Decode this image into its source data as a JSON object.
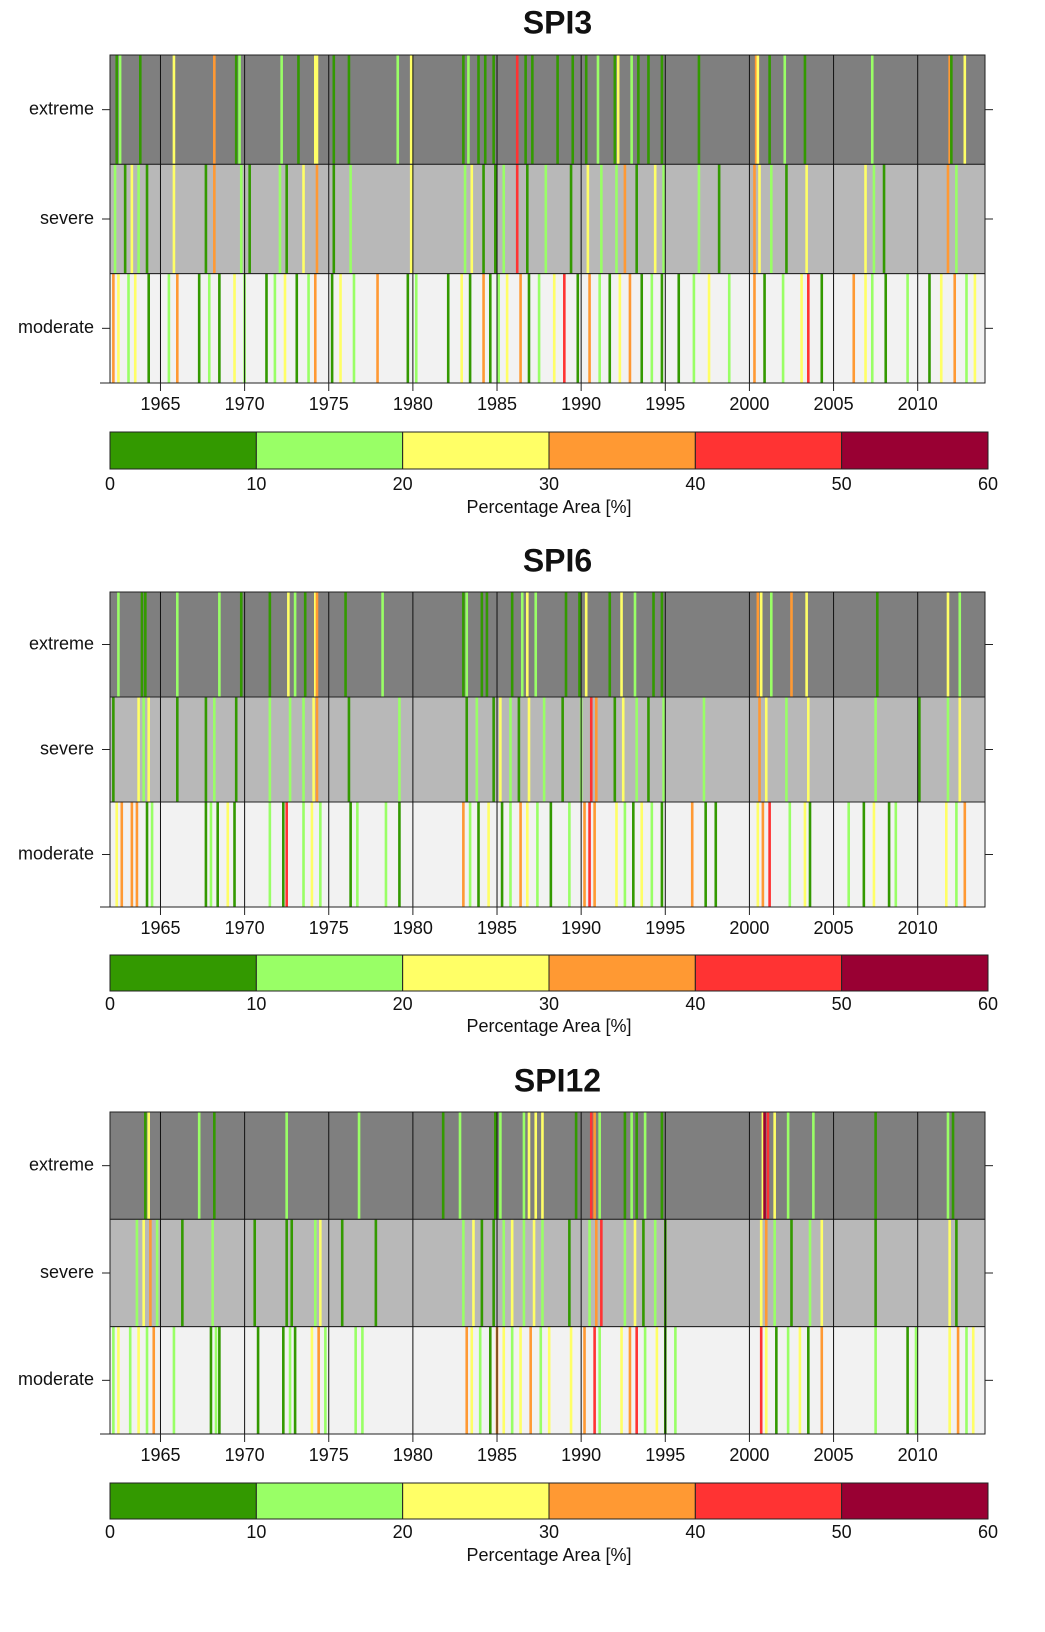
{
  "chart_data": [
    {
      "type": "heatmap",
      "title": "SPI3",
      "xlim": [
        1962,
        2014
      ],
      "xticks": [
        1965,
        1970,
        1975,
        1980,
        1985,
        1990,
        1995,
        2000,
        2005,
        2010
      ],
      "grid": true,
      "row_colors": [
        "#7f7f7f",
        "#b8b8b8",
        "#f2f2f2"
      ],
      "series": [
        {
          "name": "extreme",
          "x": [
            1962.4,
            1962.6,
            1963.8,
            1965.8,
            1968.2,
            1969.5,
            1969.7,
            1972.2,
            1973.2,
            1974.2,
            1974.3,
            1975.3,
            1976.2,
            1979.1,
            1979.9,
            1983.0,
            1983.3,
            1983.9,
            1984.3,
            1984.8,
            1986.2,
            1986.7,
            1987.1,
            1988.6,
            1989.5,
            1990.3,
            1991.0,
            1992.0,
            1992.2,
            1993.0,
            1993.4,
            1994.0,
            1994.8,
            1997.0,
            2000.4,
            2000.5,
            2001.2,
            2002.1,
            2003.3,
            2007.3,
            2011.9,
            2012.0,
            2012.8
          ],
          "values": [
            5,
            15,
            5,
            25,
            35,
            5,
            15,
            15,
            5,
            25,
            25,
            5,
            5,
            15,
            25,
            5,
            15,
            5,
            5,
            5,
            45,
            5,
            5,
            5,
            5,
            5,
            15,
            5,
            25,
            15,
            5,
            5,
            5,
            5,
            35,
            25,
            5,
            15,
            5,
            15,
            35,
            5,
            25
          ]
        },
        {
          "name": "severe",
          "x": [
            1962.3,
            1962.9,
            1963.3,
            1963.7,
            1964.2,
            1965.8,
            1967.7,
            1968.2,
            1969.8,
            1970.3,
            1972.1,
            1972.5,
            1973.5,
            1974.3,
            1975.3,
            1976.3,
            1979.9,
            1983.1,
            1983.5,
            1984.2,
            1984.9,
            1985.4,
            1986.2,
            1986.8,
            1987.9,
            1989.4,
            1990.4,
            1991.2,
            1992.1,
            1992.6,
            1993.3,
            1994.4,
            1994.9,
            1997.0,
            1998.2,
            2000.3,
            2000.6,
            2001.3,
            2002.2,
            2003.4,
            2006.9,
            2007.4,
            2008.0,
            2011.8,
            2012.3
          ],
          "values": [
            15,
            5,
            25,
            15,
            5,
            25,
            5,
            35,
            15,
            5,
            15,
            5,
            25,
            35,
            5,
            15,
            25,
            15,
            25,
            5,
            5,
            15,
            45,
            5,
            15,
            5,
            25,
            15,
            15,
            35,
            5,
            25,
            15,
            15,
            5,
            35,
            25,
            15,
            5,
            25,
            25,
            15,
            5,
            35,
            15
          ]
        },
        {
          "name": "moderate",
          "x": [
            1962.2,
            1962.5,
            1963.1,
            1963.5,
            1964.3,
            1965.5,
            1966.0,
            1967.3,
            1967.9,
            1968.5,
            1969.4,
            1970.0,
            1971.3,
            1971.8,
            1972.4,
            1973.1,
            1973.8,
            1974.2,
            1975.2,
            1975.7,
            1976.5,
            1977.9,
            1979.7,
            1980.2,
            1982.1,
            1982.9,
            1983.4,
            1984.2,
            1984.6,
            1985.1,
            1985.6,
            1986.4,
            1986.9,
            1987.5,
            1988.4,
            1989.0,
            1989.8,
            1990.5,
            1991.1,
            1991.7,
            1992.3,
            1992.9,
            1993.6,
            1994.2,
            1994.8,
            1995.8,
            1996.7,
            1997.6,
            1998.8,
            2000.3,
            2000.9,
            2002.0,
            2003.1,
            2003.5,
            2004.3,
            2006.2,
            2006.9,
            2007.3,
            2008.1,
            2009.4,
            2010.7,
            2011.4,
            2012.2,
            2012.9,
            2013.4
          ],
          "values": [
            35,
            25,
            15,
            25,
            5,
            15,
            35,
            5,
            15,
            5,
            25,
            15,
            5,
            15,
            25,
            5,
            15,
            35,
            5,
            25,
            15,
            35,
            5,
            15,
            5,
            25,
            5,
            35,
            5,
            15,
            25,
            35,
            5,
            15,
            25,
            45,
            5,
            35,
            15,
            5,
            25,
            35,
            5,
            15,
            5,
            5,
            15,
            25,
            15,
            35,
            5,
            15,
            25,
            45,
            5,
            35,
            25,
            15,
            5,
            15,
            5,
            25,
            35,
            15,
            25
          ]
        }
      ],
      "colorbar": {
        "ticks": [
          0,
          10,
          20,
          30,
          40,
          50,
          60
        ],
        "colors": [
          "#339900",
          "#99ff66",
          "#ffff66",
          "#ff9933",
          "#ff3333",
          "#990033"
        ],
        "label": "Percentage Area [%]"
      }
    },
    {
      "type": "heatmap",
      "title": "SPI6",
      "xlim": [
        1962,
        2014
      ],
      "xticks": [
        1965,
        1970,
        1975,
        1980,
        1985,
        1990,
        1995,
        2000,
        2005,
        2010
      ],
      "grid": true,
      "row_colors": [
        "#7f7f7f",
        "#b8b8b8",
        "#f2f2f2"
      ],
      "series": [
        {
          "name": "extreme",
          "x": [
            1962.5,
            1963.9,
            1964.1,
            1966.0,
            1968.5,
            1969.8,
            1971.5,
            1972.6,
            1973.0,
            1973.6,
            1974.2,
            1974.3,
            1976.0,
            1978.2,
            1983.0,
            1983.2,
            1984.1,
            1984.4,
            1985.9,
            1986.5,
            1986.8,
            1987.3,
            1989.1,
            1989.9,
            1990.3,
            1991.7,
            1992.4,
            1993.2,
            1994.3,
            1994.8,
            2000.5,
            2000.7,
            2001.3,
            2002.5,
            2003.4,
            2007.6,
            2011.8,
            2012.5
          ],
          "values": [
            15,
            5,
            5,
            15,
            15,
            5,
            5,
            25,
            15,
            5,
            25,
            35,
            5,
            15,
            5,
            15,
            5,
            5,
            5,
            15,
            25,
            15,
            5,
            5,
            25,
            5,
            25,
            15,
            5,
            5,
            35,
            25,
            15,
            35,
            25,
            5,
            25,
            15
          ]
        },
        {
          "name": "severe",
          "x": [
            1962.2,
            1963.7,
            1964.0,
            1964.3,
            1966.0,
            1967.7,
            1968.2,
            1969.5,
            1971.5,
            1972.7,
            1973.5,
            1974.1,
            1974.3,
            1976.2,
            1979.2,
            1983.2,
            1983.8,
            1984.8,
            1985.2,
            1985.8,
            1986.3,
            1986.9,
            1987.8,
            1988.9,
            1990.0,
            1990.6,
            1990.9,
            1992.0,
            1992.5,
            1993.3,
            1994.0,
            1994.9,
            1997.3,
            2000.6,
            2001.0,
            2002.2,
            2003.5,
            2007.5,
            2010.1,
            2011.8,
            2012.5
          ],
          "values": [
            5,
            25,
            15,
            25,
            5,
            5,
            15,
            5,
            15,
            15,
            15,
            25,
            35,
            5,
            15,
            5,
            15,
            5,
            25,
            15,
            5,
            25,
            15,
            5,
            15,
            45,
            35,
            5,
            25,
            15,
            5,
            15,
            15,
            35,
            25,
            15,
            25,
            15,
            5,
            15,
            25
          ]
        },
        {
          "name": "moderate",
          "x": [
            1962.4,
            1962.7,
            1963.3,
            1963.6,
            1964.2,
            1964.5,
            1967.7,
            1968.0,
            1968.4,
            1969.0,
            1969.4,
            1971.5,
            1972.3,
            1972.5,
            1973.5,
            1974.0,
            1974.5,
            1976.3,
            1976.7,
            1978.4,
            1979.2,
            1983.0,
            1983.4,
            1983.9,
            1984.5,
            1985.3,
            1985.8,
            1986.4,
            1986.8,
            1987.4,
            1988.2,
            1989.3,
            1990.2,
            1990.5,
            1990.8,
            1992.1,
            1992.6,
            1993.1,
            1993.6,
            1994.2,
            1994.8,
            1996.6,
            1997.4,
            1998.0,
            2000.5,
            2000.8,
            2001.2,
            2002.4,
            2003.3,
            2003.6,
            2005.9,
            2006.8,
            2007.4,
            2008.3,
            2008.7,
            2011.7,
            2012.3,
            2012.8
          ],
          "values": [
            25,
            35,
            35,
            35,
            5,
            15,
            5,
            15,
            5,
            25,
            5,
            15,
            5,
            45,
            15,
            25,
            15,
            5,
            15,
            15,
            5,
            35,
            15,
            5,
            25,
            5,
            15,
            35,
            25,
            15,
            5,
            15,
            35,
            45,
            35,
            25,
            15,
            5,
            25,
            15,
            5,
            35,
            5,
            5,
            25,
            35,
            45,
            15,
            25,
            5,
            15,
            5,
            25,
            5,
            15,
            25,
            15,
            35
          ]
        }
      ],
      "colorbar": {
        "ticks": [
          0,
          10,
          20,
          30,
          40,
          50,
          60
        ],
        "colors": [
          "#339900",
          "#99ff66",
          "#ffff66",
          "#ff9933",
          "#ff3333",
          "#990033"
        ],
        "label": "Percentage Area [%]"
      }
    },
    {
      "type": "heatmap",
      "title": "SPI12",
      "xlim": [
        1962,
        2014
      ],
      "xticks": [
        1965,
        1970,
        1975,
        1980,
        1985,
        1990,
        1995,
        2000,
        2005,
        2010
      ],
      "grid": true,
      "row_colors": [
        "#7f7f7f",
        "#b8b8b8",
        "#f2f2f2"
      ],
      "series": [
        {
          "name": "extreme",
          "x": [
            1964.1,
            1964.3,
            1967.3,
            1968.2,
            1972.5,
            1976.8,
            1981.8,
            1982.8,
            1984.9,
            1985.2,
            1986.6,
            1986.9,
            1987.3,
            1987.7,
            1989.7,
            1990.6,
            1990.8,
            1991.1,
            1992.6,
            1993.0,
            1993.3,
            1993.8,
            1994.8,
            2000.8,
            2000.9,
            2001.1,
            2001.5,
            2002.3,
            2003.8,
            2007.5,
            2011.8,
            2012.1
          ],
          "values": [
            5,
            25,
            15,
            5,
            15,
            15,
            5,
            15,
            5,
            15,
            15,
            25,
            25,
            25,
            5,
            45,
            35,
            15,
            5,
            15,
            5,
            15,
            5,
            25,
            55,
            45,
            25,
            15,
            15,
            5,
            15,
            5
          ]
        },
        {
          "name": "severe",
          "x": [
            1963.6,
            1964.0,
            1964.4,
            1964.8,
            1966.3,
            1968.1,
            1970.6,
            1972.5,
            1972.8,
            1974.2,
            1974.5,
            1975.8,
            1977.8,
            1983.0,
            1983.6,
            1984.1,
            1984.8,
            1985.4,
            1985.9,
            1986.6,
            1987.2,
            1987.7,
            1989.3,
            1990.5,
            1990.9,
            1991.2,
            1992.6,
            1993.2,
            1993.7,
            1994.4,
            1995.0,
            2000.7,
            2001.0,
            2001.5,
            2002.5,
            2003.6,
            2004.3,
            2007.5,
            2011.9,
            2012.3
          ],
          "values": [
            15,
            25,
            35,
            15,
            5,
            15,
            5,
            5,
            5,
            15,
            25,
            5,
            5,
            15,
            25,
            5,
            5,
            15,
            25,
            15,
            25,
            15,
            5,
            15,
            35,
            45,
            15,
            25,
            5,
            15,
            5,
            25,
            35,
            15,
            5,
            15,
            25,
            5,
            25,
            5
          ]
        },
        {
          "name": "moderate",
          "x": [
            1962.2,
            1962.5,
            1963.2,
            1963.7,
            1964.2,
            1964.6,
            1965.8,
            1968.0,
            1968.3,
            1968.5,
            1970.8,
            1972.3,
            1972.7,
            1973.0,
            1974.0,
            1974.4,
            1974.8,
            1976.6,
            1977.0,
            1983.2,
            1983.5,
            1984.0,
            1984.6,
            1985.0,
            1985.4,
            1985.9,
            1986.4,
            1987.0,
            1987.6,
            1988.1,
            1989.4,
            1990.2,
            1990.8,
            1991.1,
            1992.4,
            1992.9,
            1993.3,
            1993.8,
            1994.5,
            1995.0,
            1995.6,
            2000.7,
            2001.0,
            2001.6,
            2002.3,
            2003.0,
            2003.5,
            2004.3,
            2007.5,
            2009.4,
            2009.9,
            2011.9,
            2012.4,
            2012.9,
            2013.3
          ],
          "values": [
            15,
            25,
            15,
            25,
            15,
            35,
            15,
            5,
            15,
            5,
            5,
            5,
            15,
            5,
            25,
            35,
            15,
            15,
            15,
            35,
            25,
            15,
            5,
            35,
            25,
            15,
            25,
            35,
            15,
            25,
            25,
            35,
            45,
            15,
            25,
            35,
            45,
            15,
            25,
            5,
            15,
            45,
            25,
            5,
            15,
            25,
            5,
            35,
            15,
            5,
            15,
            25,
            35,
            15,
            25
          ]
        }
      ],
      "colorbar": {
        "ticks": [
          0,
          10,
          20,
          30,
          40,
          50,
          60
        ],
        "colors": [
          "#339900",
          "#99ff66",
          "#ffff66",
          "#ff9933",
          "#ff3333",
          "#990033"
        ],
        "label": "Percentage Area [%]"
      }
    }
  ]
}
